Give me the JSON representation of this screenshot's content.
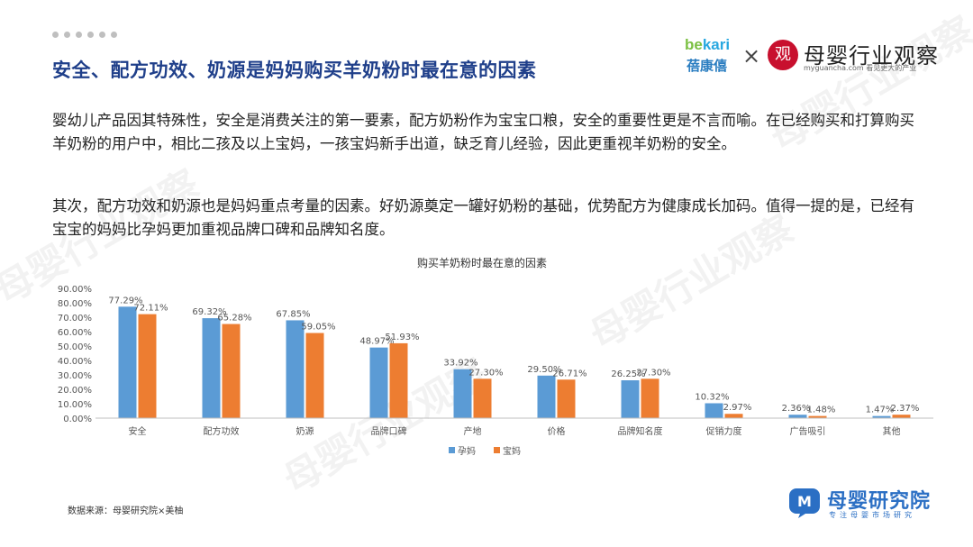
{
  "header": {
    "title": "安全、配方功效、奶源是妈妈购买羊奶粉时最在意的因素"
  },
  "brands": {
    "bekari_latin_a": "be",
    "bekari_latin_b": "kari",
    "bekari_cn": "蓓康僖",
    "times": "×",
    "seal_char": "观",
    "guancha_name": "母婴行业观察",
    "guancha_url": "myguancha.com 看见更大的产业"
  },
  "body": {
    "paragraph1": "婴幼儿产品因其特殊性，安全是消费关注的第一要素，配方奶粉作为宝宝口粮，安全的重要性更是不言而喻。在已经购买和打算购买羊奶粉的用户中，相比二孩及以上宝妈，一孩宝妈新手出道，缺乏育儿经验，因此更重视羊奶粉的安全。",
    "paragraph2": "其次，配方功效和奶源也是妈妈重点考量的因素。好奶源奠定一罐好奶粉的基础，优势配方为健康成长加码。值得一提的是，已经有宝宝的妈妈比孕妈更加重视品牌口碑和品牌知名度。"
  },
  "chart_data": {
    "type": "bar",
    "title": "购买羊奶粉时最在意的因素",
    "categories": [
      "安全",
      "配方功效",
      "奶源",
      "品牌口碑",
      "产地",
      "价格",
      "品牌知名度",
      "促销力度",
      "广告吸引",
      "其他"
    ],
    "series": [
      {
        "name": "孕妈",
        "color": "#5b9bd5",
        "values": [
          77.29,
          69.32,
          67.85,
          48.97,
          33.92,
          29.5,
          26.25,
          10.32,
          2.36,
          1.47
        ],
        "labels": [
          "77.29%",
          "69.32%",
          "67.85%",
          "48.97%",
          "33.92%",
          "29.50%",
          "26.25%",
          "10.32%",
          "2.36%",
          "1.47%"
        ]
      },
      {
        "name": "宝妈",
        "color": "#ed7d31",
        "values": [
          72.11,
          65.28,
          59.05,
          51.93,
          27.3,
          26.71,
          27.3,
          2.97,
          1.48,
          2.37
        ],
        "labels": [
          "72.11%",
          "65.28%",
          "59.05%",
          "51.93%",
          "27.30%",
          "26.71%",
          "27.30%",
          "2.97%",
          "1.48%",
          "2.37%"
        ]
      }
    ],
    "yticks": [
      "0.00%",
      "10.00%",
      "20.00%",
      "30.00%",
      "40.00%",
      "50.00%",
      "60.00%",
      "70.00%",
      "80.00%",
      "90.00%"
    ],
    "ylim": [
      0,
      90
    ],
    "legend_position": "bottom",
    "grid": false
  },
  "footer": {
    "source": "数据来源：母婴研究院×美柚",
    "logo_name": "母婴研究院",
    "logo_sub": "专注母婴市场研究",
    "logo_glyph": "M"
  },
  "watermark": {
    "text": "母婴行业观察"
  }
}
